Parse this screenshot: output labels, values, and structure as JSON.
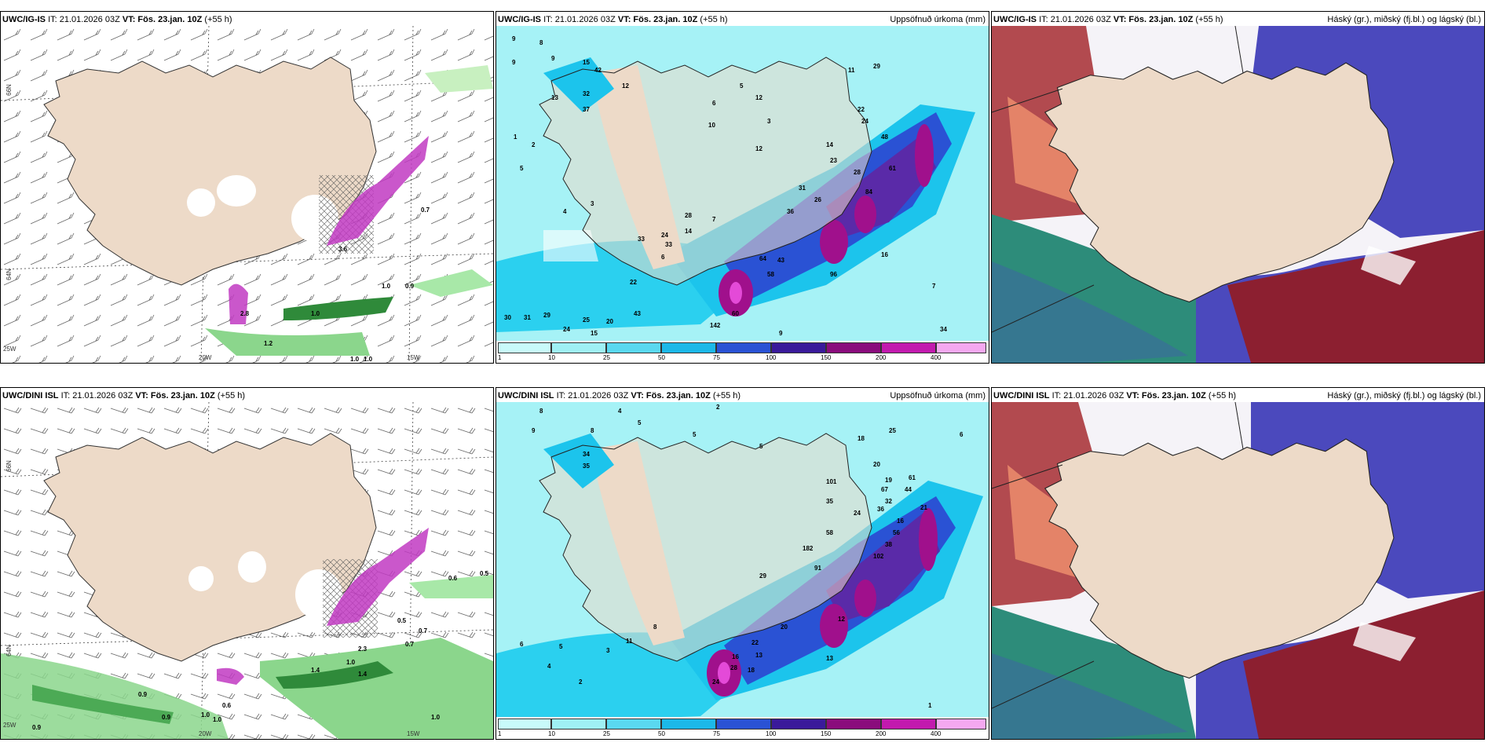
{
  "colors": {
    "land": "#eddac8",
    "precip_bg": "#a6f2f6",
    "precip_mid": "#1cc4ec",
    "precip_hi": "#2a52d4",
    "precip_max": "#a0108c",
    "cloud_high": "#a8262f",
    "cloud_mid": "#4b49bd",
    "cloud_low": "#2d8c7a"
  },
  "row_top": {
    "wind": {
      "model": "UWC/IG-IS",
      "it": "IT: 21.01.2026 03Z",
      "vt_label": "VT:",
      "vt": "Fös. 23.jan. 10Z",
      "lead": "(+55 h)",
      "labels": [
        "1.0",
        "0.9",
        "1.0",
        "1.2",
        "1.0",
        "1.0",
        "0.7",
        "3.6",
        "2.8"
      ],
      "axis": [
        "66N",
        "64N",
        "20W",
        "15W",
        "25W"
      ]
    },
    "precip": {
      "model": "UWC/IG-IS",
      "it": "IT: 21.01.2026 03Z",
      "vt_label": "VT:",
      "vt": "Fös. 23.jan. 10Z",
      "lead": "(+55 h)",
      "right": "Uppsöfnuð úrkoma (mm)",
      "labels": [
        "9",
        "8",
        "9",
        "15",
        "9",
        "13",
        "32",
        "37",
        "42",
        "12",
        "10",
        "3",
        "6",
        "5",
        "12",
        "11",
        "12",
        "29",
        "22",
        "24",
        "48",
        "14",
        "23",
        "28",
        "61",
        "84",
        "31",
        "26",
        "36",
        "28",
        "24",
        "33",
        "64",
        "43",
        "58",
        "96",
        "142",
        "60",
        "22",
        "33",
        "30",
        "31",
        "29",
        "24",
        "20",
        "25",
        "15",
        "43",
        "24",
        "9",
        "7",
        "34",
        "16",
        "14",
        "7",
        "6",
        "5",
        "4",
        "3",
        "2",
        "1"
      ],
      "colorbar": [
        "1",
        "10",
        "25",
        "50",
        "75",
        "100",
        "150",
        "200",
        "400"
      ]
    },
    "cloud": {
      "model": "UWC/IG-IS",
      "it": "IT: 21.01.2026 03Z",
      "vt_label": "VT:",
      "vt": "Fös. 23.jan. 10Z",
      "lead": "(+55 h)",
      "right": "Háský (gr.), miðský (fj.bl.) og lágský (bl.)"
    }
  },
  "row_bottom": {
    "wind": {
      "model": "UWC/DINI ISL",
      "it": "IT: 21.01.2026 03Z",
      "vt_label": "VT:",
      "vt": "Fös. 23.jan. 10Z",
      "lead": "(+55 h)",
      "labels": [
        "0.6",
        "0.5",
        "0.5",
        "0.7",
        "0.7",
        "1.0",
        "0.9",
        "0.9",
        "1.0",
        "0.6",
        "0.9",
        "1.0",
        "1.4",
        "1.4",
        "2.3",
        "1.0"
      ],
      "axis": [
        "66N",
        "64N",
        "20W",
        "15W",
        "25W"
      ]
    },
    "precip": {
      "model": "UWC/DINI ISL",
      "it": "IT: 21.01.2026 03Z",
      "vt_label": "VT:",
      "vt": "Fös. 23.jan. 10Z",
      "lead": "(+55 h)",
      "right": "Uppsöfnuð úrkoma (mm)",
      "labels": [
        "8",
        "4",
        "2",
        "9",
        "8",
        "5",
        "5",
        "5",
        "6",
        "18",
        "25",
        "34",
        "35",
        "20",
        "19",
        "61",
        "44",
        "36",
        "32",
        "67",
        "21",
        "16",
        "24",
        "56",
        "38",
        "101",
        "35",
        "58",
        "182",
        "102",
        "91",
        "29",
        "16",
        "13",
        "12",
        "22",
        "20",
        "24",
        "28",
        "18",
        "13",
        "11",
        "8",
        "6",
        "5",
        "4",
        "3",
        "2",
        "1"
      ],
      "colorbar": [
        "1",
        "10",
        "25",
        "50",
        "75",
        "100",
        "150",
        "200",
        "400"
      ]
    },
    "cloud": {
      "model": "UWC/DINI ISL",
      "it": "IT: 21.01.2026 03Z",
      "vt_label": "VT:",
      "vt": "Fös. 23.jan. 10Z",
      "lead": "(+55 h)",
      "right": "Háský (gr.), miðský (fj.bl.) og lágský (bl.)"
    }
  }
}
